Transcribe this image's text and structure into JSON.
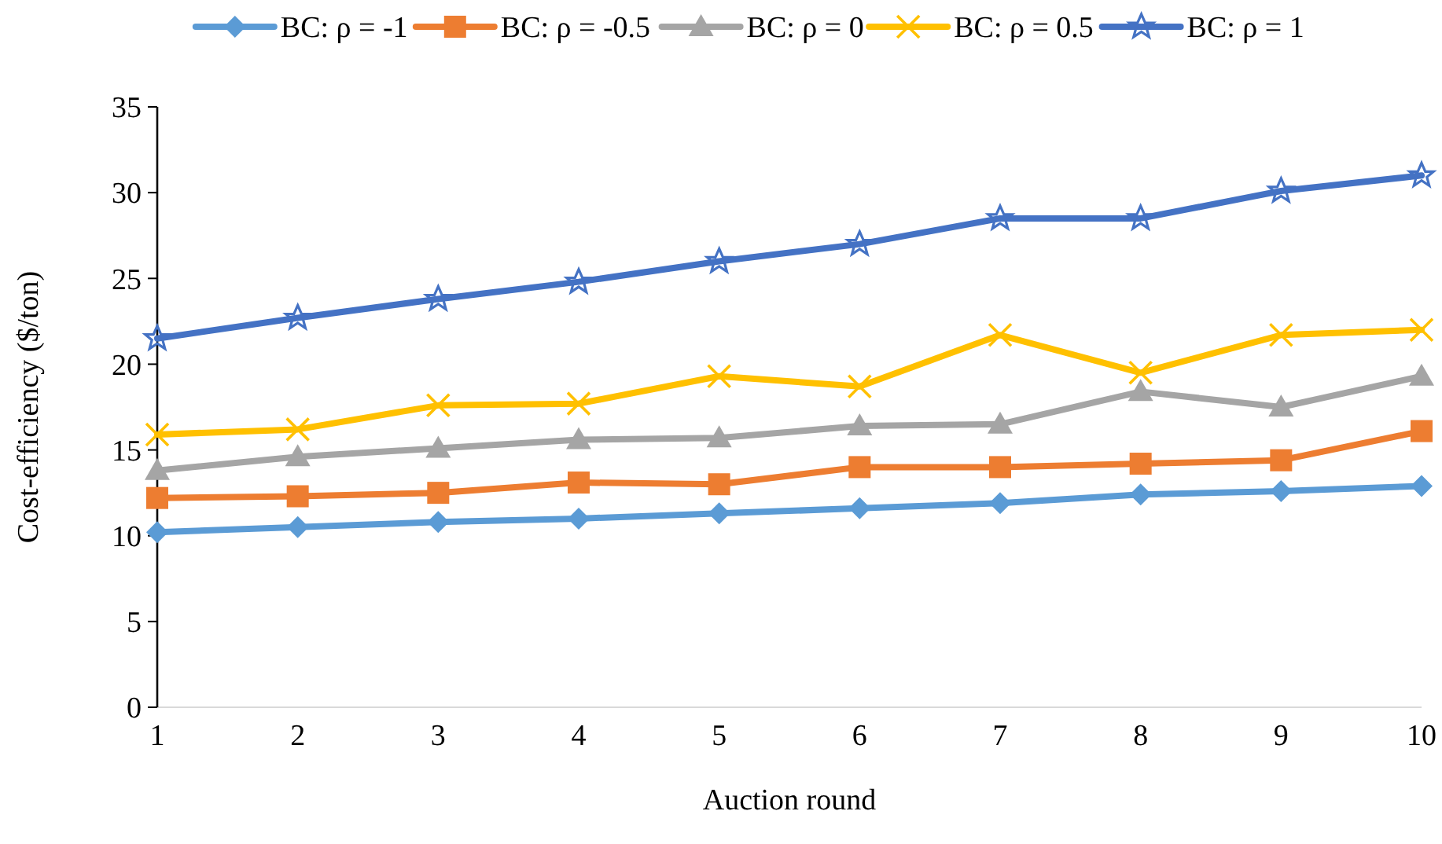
{
  "chart_data": {
    "type": "line",
    "xlabel": "Auction round",
    "ylabel": "Cost-efficiency ($/ton)",
    "x": [
      1,
      2,
      3,
      4,
      5,
      6,
      7,
      8,
      9,
      10
    ],
    "xlim": [
      1,
      10
    ],
    "xticks": [
      1,
      2,
      3,
      4,
      5,
      6,
      7,
      8,
      9,
      10
    ],
    "ylim": [
      0,
      35
    ],
    "yticks": [
      0,
      5,
      10,
      15,
      20,
      25,
      30,
      35
    ],
    "grid": false,
    "legend": "top",
    "series": [
      {
        "name": "BC: ρ = -1",
        "color": "#5b9bd5",
        "marker": "diamond",
        "values": [
          10.2,
          10.5,
          10.8,
          11.0,
          11.3,
          11.6,
          11.9,
          12.4,
          12.6,
          12.9
        ]
      },
      {
        "name": "BC: ρ = -0.5",
        "color": "#ed7d31",
        "marker": "square",
        "values": [
          12.2,
          12.3,
          12.5,
          13.1,
          13.0,
          14.0,
          14.0,
          14.2,
          14.4,
          16.1
        ]
      },
      {
        "name": "BC: ρ = 0",
        "color": "#a5a5a5",
        "marker": "triangle",
        "values": [
          13.8,
          14.6,
          15.1,
          15.6,
          15.7,
          16.4,
          16.5,
          18.4,
          17.5,
          19.3
        ]
      },
      {
        "name": "BC: ρ = 0.5",
        "color": "#ffc000",
        "marker": "cross",
        "values": [
          15.9,
          16.2,
          17.6,
          17.7,
          19.3,
          18.7,
          21.7,
          19.5,
          21.7,
          22.0
        ]
      },
      {
        "name": "BC: ρ = 1",
        "color": "#4472c4",
        "marker": "star",
        "values": [
          21.5,
          22.7,
          23.8,
          24.8,
          26.0,
          27.0,
          28.5,
          28.5,
          30.1,
          31.0
        ]
      }
    ]
  }
}
